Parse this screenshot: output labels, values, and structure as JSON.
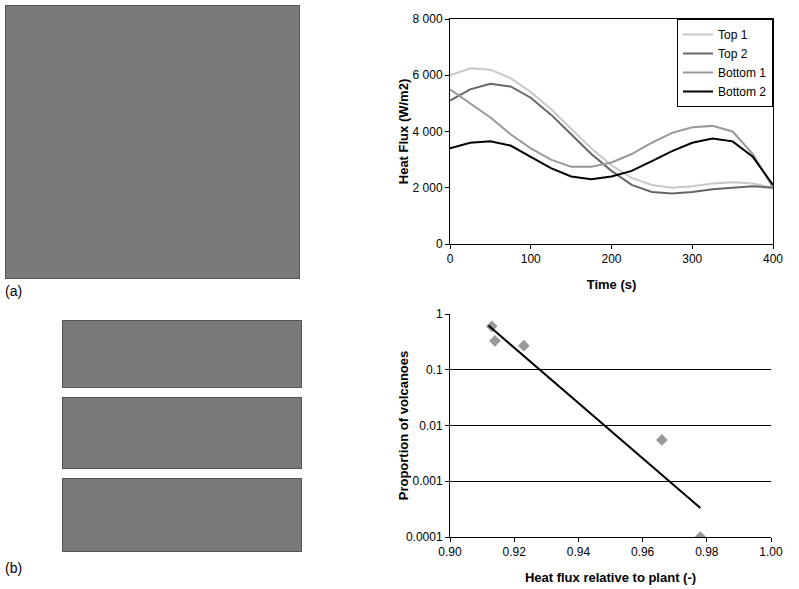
{
  "panels": [
    {
      "label": "(a)"
    },
    {
      "label": "(b)"
    }
  ],
  "chart_data": [
    {
      "type": "line",
      "x_title": "Time (s)",
      "y_title": "Heat Flux (W/m2)",
      "x": [
        0,
        25,
        50,
        75,
        100,
        125,
        150,
        175,
        200,
        225,
        250,
        275,
        300,
        325,
        350,
        375,
        400
      ],
      "series": [
        {
          "name": "Top 1",
          "color": "#c8c8c8",
          "values": [
            6000,
            6250,
            6200,
            5900,
            5400,
            4800,
            4100,
            3400,
            2800,
            2350,
            2100,
            2000,
            2050,
            2150,
            2200,
            2150,
            2000
          ]
        },
        {
          "name": "Top 2",
          "color": "#666666",
          "values": [
            5100,
            5500,
            5700,
            5600,
            5200,
            4600,
            3900,
            3200,
            2600,
            2100,
            1850,
            1800,
            1850,
            1950,
            2000,
            2050,
            2000
          ]
        },
        {
          "name": "Bottom 1",
          "color": "#999999",
          "values": [
            5500,
            5000,
            4500,
            3900,
            3400,
            3000,
            2750,
            2750,
            2900,
            3200,
            3600,
            3950,
            4150,
            4200,
            4000,
            3200,
            2000
          ]
        },
        {
          "name": "Bottom 2",
          "color": "#000000",
          "values": [
            3400,
            3600,
            3650,
            3500,
            3100,
            2700,
            2400,
            2300,
            2400,
            2600,
            2950,
            3300,
            3600,
            3750,
            3650,
            3100,
            2100
          ]
        }
      ],
      "xlim": [
        0,
        400
      ],
      "xticks": [
        0,
        100,
        200,
        300,
        400
      ],
      "ylim": [
        0,
        8000
      ],
      "yticks": [
        0,
        {
          "value": 2000,
          "label": "2 000"
        },
        {
          "value": 4000,
          "label": "4 000"
        },
        {
          "value": 6000,
          "label": "6 000"
        },
        {
          "value": 8000,
          "label": "8 000"
        }
      ],
      "grid": false,
      "legend": "top-right"
    },
    {
      "type": "scatter",
      "x_title": "Heat flux relative to plant (-)",
      "y_title": "Proportion of volcanoes",
      "log": "y",
      "series": [
        {
          "type": "scatter",
          "marker": "diamond",
          "color": "#999999",
          "x": [
            0.913,
            0.914,
            0.923,
            0.966,
            0.978
          ],
          "values": [
            0.6,
            0.33,
            0.27,
            0.0055,
            0.0001
          ]
        },
        {
          "type": "line",
          "line_style": "solid",
          "color": "#000000",
          "x": [
            0.912,
            0.978
          ],
          "values": [
            0.62,
            0.00033
          ]
        }
      ],
      "xlim": [
        0.9,
        1.0
      ],
      "xticks": [
        {
          "value": 0.9,
          "label": "0.90"
        },
        0.92,
        0.94,
        0.96,
        0.98,
        {
          "value": 1.0,
          "label": "1.00"
        }
      ],
      "ylim": [
        0.0001,
        1
      ],
      "yticks": [
        0.0001,
        0.001,
        0.01,
        0.1,
        1
      ],
      "grid": true
    }
  ]
}
